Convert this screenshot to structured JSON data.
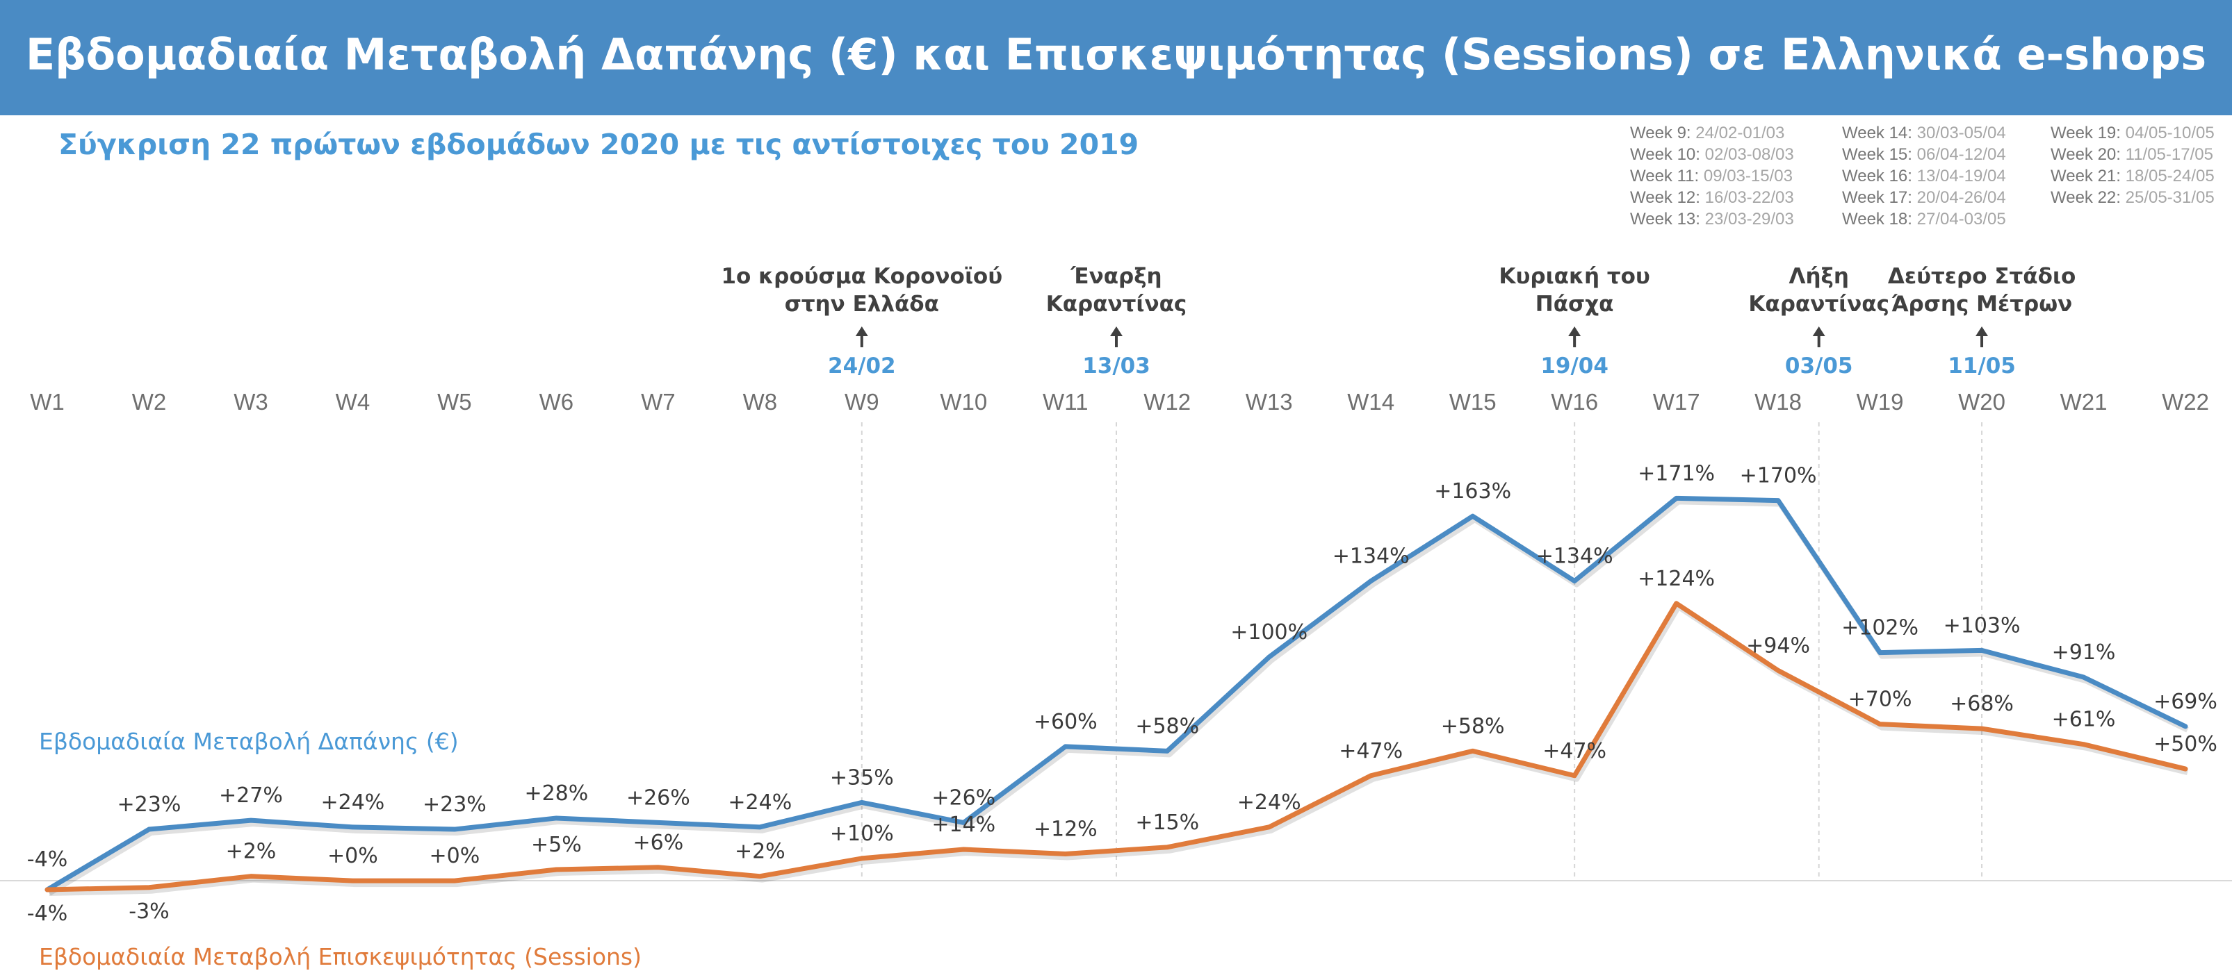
{
  "title": "Εβδομαδιαία Μεταβολή Δαπάνης (€) και Επισκεψιμότητας (Sessions) σε Ελληνικά e-shops",
  "subtitle": "Σύγκριση 22 πρώτων εβδομάδων 2020 με τις αντίστοιχες του 2019",
  "colors": {
    "header": "#4a8bc4",
    "spend": "#4a8bc4",
    "sessions": "#e07b3b",
    "event_date": "#4a99d6"
  },
  "week_legend": [
    [
      {
        "name": "Week 9:",
        "range": "24/02-01/03"
      },
      {
        "name": "Week 10:",
        "range": "02/03-08/03"
      },
      {
        "name": "Week 11:",
        "range": "09/03-15/03"
      },
      {
        "name": "Week 12:",
        "range": "16/03-22/03"
      },
      {
        "name": "Week 13:",
        "range": "23/03-29/03"
      }
    ],
    [
      {
        "name": "Week 14:",
        "range": "30/03-05/04"
      },
      {
        "name": "Week 15:",
        "range": "06/04-12/04"
      },
      {
        "name": "Week 16:",
        "range": "13/04-19/04"
      },
      {
        "name": "Week 17:",
        "range": "20/04-26/04"
      },
      {
        "name": "Week 18:",
        "range": "27/04-03/05"
      }
    ],
    [
      {
        "name": "Week 19:",
        "range": "04/05-10/05"
      },
      {
        "name": "Week 20:",
        "range": "11/05-17/05"
      },
      {
        "name": "Week 21:",
        "range": "18/05-24/05"
      },
      {
        "name": "Week 22:",
        "range": "25/05-31/05"
      }
    ]
  ],
  "chart_data": {
    "type": "line",
    "title": "Εβδομαδιαία Μεταβολή Δαπάνης (€) και Επισκεψιμότητας (Sessions) σε Ελληνικά e-shops",
    "categories": [
      "W1",
      "W2",
      "W3",
      "W4",
      "W5",
      "W6",
      "W7",
      "W8",
      "W9",
      "W10",
      "W11",
      "W12",
      "W13",
      "W14",
      "W15",
      "W16",
      "W17",
      "W18",
      "W19",
      "W20",
      "W21",
      "W22"
    ],
    "ylim": [
      -10,
      190
    ],
    "series": [
      {
        "name": "Εβδομαδιαία Μεταβολή Δαπάνης (€)",
        "color": "#4a8bc4",
        "values": [
          -4,
          23,
          27,
          24,
          23,
          28,
          26,
          24,
          35,
          26,
          60,
          58,
          100,
          134,
          163,
          134,
          171,
          170,
          102,
          103,
          91,
          69
        ],
        "labels": [
          "-4%",
          "+23%",
          "+27%",
          "+24%",
          "+23%",
          "+28%",
          "+26%",
          "+24%",
          "+35%",
          "+26%",
          "+60%",
          "+58%",
          "+100%",
          "+134%",
          "+163%",
          "+134%",
          "+171%",
          "+170%",
          "+102%",
          "+103%",
          "+91%",
          "+69%"
        ]
      },
      {
        "name": "Εβδομαδιαία Μεταβολή Επισκεψιμότητας (Sessions)",
        "color": "#e07b3b",
        "values": [
          -4,
          -3,
          2,
          0,
          0,
          5,
          6,
          2,
          10,
          14,
          12,
          15,
          24,
          47,
          58,
          47,
          124,
          94,
          70,
          68,
          61,
          50
        ],
        "labels": [
          "-4%",
          "-3%",
          "+2%",
          "+0%",
          "+0%",
          "+5%",
          "+6%",
          "+2%",
          "+10%",
          "+14%",
          "+12%",
          "+15%",
          "+24%",
          "+47%",
          "+58%",
          "+47%",
          "+124%",
          "+94%",
          "+70%",
          "+68%",
          "+61%",
          "+50%"
        ]
      }
    ],
    "events": [
      {
        "week_pos": 9,
        "lines": [
          "1ο κρούσμα Κορονοϊού",
          "στην Ελλάδα"
        ],
        "date": "24/02"
      },
      {
        "week_pos": 11.5,
        "lines": [
          "Έναρξη",
          "Καραντίνας"
        ],
        "date": "13/03"
      },
      {
        "week_pos": 16,
        "lines": [
          "Κυριακή του",
          "Πάσχα"
        ],
        "date": "19/04"
      },
      {
        "week_pos": 18.4,
        "lines": [
          "Λήξη",
          "Καραντίνας"
        ],
        "date": "03/05"
      },
      {
        "week_pos": 20,
        "lines": [
          "Δεύτερο Στάδιο",
          "Άρσης Μέτρων"
        ],
        "date": "11/05"
      }
    ],
    "grid": false
  }
}
